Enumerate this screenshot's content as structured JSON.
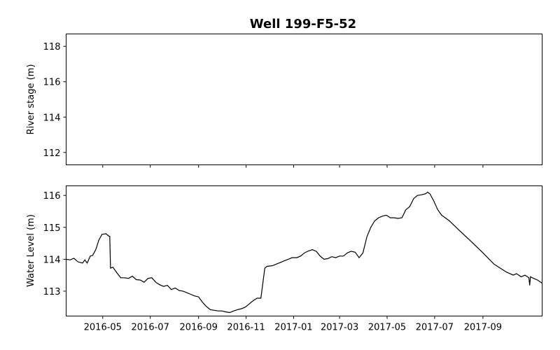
{
  "chart_data": [
    {
      "type": "line",
      "title": "Well 199-F5-52",
      "xlabel": "",
      "ylabel": "River stage (m)",
      "ylim": [
        111.3,
        118.7
      ],
      "yticks": [
        112,
        114,
        116,
        118
      ],
      "xlim": [
        "2016-03-15",
        "2017-11-16"
      ],
      "xticks": [],
      "grid": false,
      "series": []
    },
    {
      "type": "line",
      "title": "",
      "xlabel": "",
      "ylabel": "Water Level (m)",
      "ylim": [
        112.22,
        116.3
      ],
      "yticks": [
        113,
        114,
        115,
        116
      ],
      "xlim": [
        "2016-03-15",
        "2017-11-16"
      ],
      "xticks": [
        "2016-05",
        "2016-07",
        "2016-09",
        "2016-11",
        "2017-01",
        "2017-03",
        "2017-05",
        "2017-07",
        "2017-09"
      ],
      "grid": false,
      "series": [
        {
          "x": [
            "2016-03-15",
            "2016-03-20",
            "2016-03-25",
            "2016-03-30",
            "2016-04-05",
            "2016-04-08",
            "2016-04-11",
            "2016-04-15",
            "2016-04-18",
            "2016-04-22",
            "2016-04-26",
            "2016-04-30",
            "2016-05-05",
            "2016-05-09",
            "2016-05-10",
            "2016-05-11",
            "2016-05-14",
            "2016-05-19",
            "2016-05-24",
            "2016-05-29",
            "2016-06-03",
            "2016-06-08",
            "2016-06-13",
            "2016-06-18",
            "2016-06-23",
            "2016-06-28",
            "2016-07-03",
            "2016-07-08",
            "2016-07-13",
            "2016-07-18",
            "2016-07-23",
            "2016-07-28",
            "2016-08-02",
            "2016-08-07",
            "2016-08-12",
            "2016-08-17",
            "2016-08-22",
            "2016-08-27",
            "2016-09-01",
            "2016-09-06",
            "2016-09-11",
            "2016-09-16",
            "2016-09-21",
            "2016-09-26",
            "2016-10-01",
            "2016-10-06",
            "2016-10-11",
            "2016-10-16",
            "2016-10-21",
            "2016-10-26",
            "2016-10-31",
            "2016-11-05",
            "2016-11-10",
            "2016-11-15",
            "2016-11-20",
            "2016-11-25",
            "2016-11-28",
            "2016-11-29",
            "2016-12-05",
            "2016-12-10",
            "2016-12-15",
            "2016-12-20",
            "2016-12-25",
            "2016-12-30",
            "2017-01-05",
            "2017-01-10",
            "2017-01-15",
            "2017-01-20",
            "2017-01-25",
            "2017-01-30",
            "2017-02-04",
            "2017-02-09",
            "2017-02-14",
            "2017-02-19",
            "2017-02-24",
            "2017-03-01",
            "2017-03-06",
            "2017-03-11",
            "2017-03-16",
            "2017-03-21",
            "2017-03-26",
            "2017-03-31",
            "2017-04-05",
            "2017-04-10",
            "2017-04-15",
            "2017-04-20",
            "2017-04-25",
            "2017-04-30",
            "2017-05-05",
            "2017-05-10",
            "2017-05-15",
            "2017-05-20",
            "2017-05-25",
            "2017-05-30",
            "2017-06-04",
            "2017-06-09",
            "2017-06-14",
            "2017-06-19",
            "2017-06-22",
            "2017-06-25",
            "2017-06-30",
            "2017-07-05",
            "2017-07-10",
            "2017-07-20",
            "2017-08-01",
            "2017-08-15",
            "2017-09-01",
            "2017-09-15",
            "2017-10-01",
            "2017-10-10",
            "2017-10-14",
            "2017-10-20",
            "2017-10-25",
            "2017-10-30",
            "2017-10-31",
            "2017-11-01",
            "2017-11-05",
            "2017-11-10",
            "2017-11-16"
          ],
          "y": [
            114.0,
            113.98,
            114.03,
            113.92,
            113.88,
            113.98,
            113.88,
            114.1,
            114.12,
            114.3,
            114.6,
            114.78,
            114.8,
            114.72,
            114.72,
            113.72,
            113.75,
            113.58,
            113.42,
            113.42,
            113.4,
            113.47,
            113.36,
            113.35,
            113.28,
            113.4,
            113.42,
            113.28,
            113.2,
            113.15,
            113.18,
            113.05,
            113.1,
            113.02,
            113.0,
            112.95,
            112.9,
            112.85,
            112.82,
            112.65,
            112.52,
            112.42,
            112.4,
            112.38,
            112.38,
            112.35,
            112.33,
            112.38,
            112.42,
            112.45,
            112.5,
            112.6,
            112.7,
            112.78,
            112.78,
            113.72,
            113.78,
            113.78,
            113.8,
            113.85,
            113.9,
            113.95,
            114.0,
            114.05,
            114.05,
            114.1,
            114.2,
            114.26,
            114.3,
            114.25,
            114.1,
            114.0,
            114.02,
            114.08,
            114.05,
            114.1,
            114.1,
            114.2,
            114.25,
            114.22,
            114.05,
            114.2,
            114.7,
            115.0,
            115.2,
            115.3,
            115.35,
            115.38,
            115.3,
            115.3,
            115.28,
            115.3,
            115.55,
            115.65,
            115.9,
            116.0,
            116.02,
            116.05,
            116.1,
            116.05,
            115.82,
            115.55,
            115.38,
            115.2,
            114.92,
            114.6,
            114.2,
            113.85,
            113.6,
            113.5,
            113.55,
            113.45,
            113.5,
            113.42,
            113.18,
            113.45,
            113.4,
            113.35,
            113.25
          ]
        }
      ]
    }
  ]
}
